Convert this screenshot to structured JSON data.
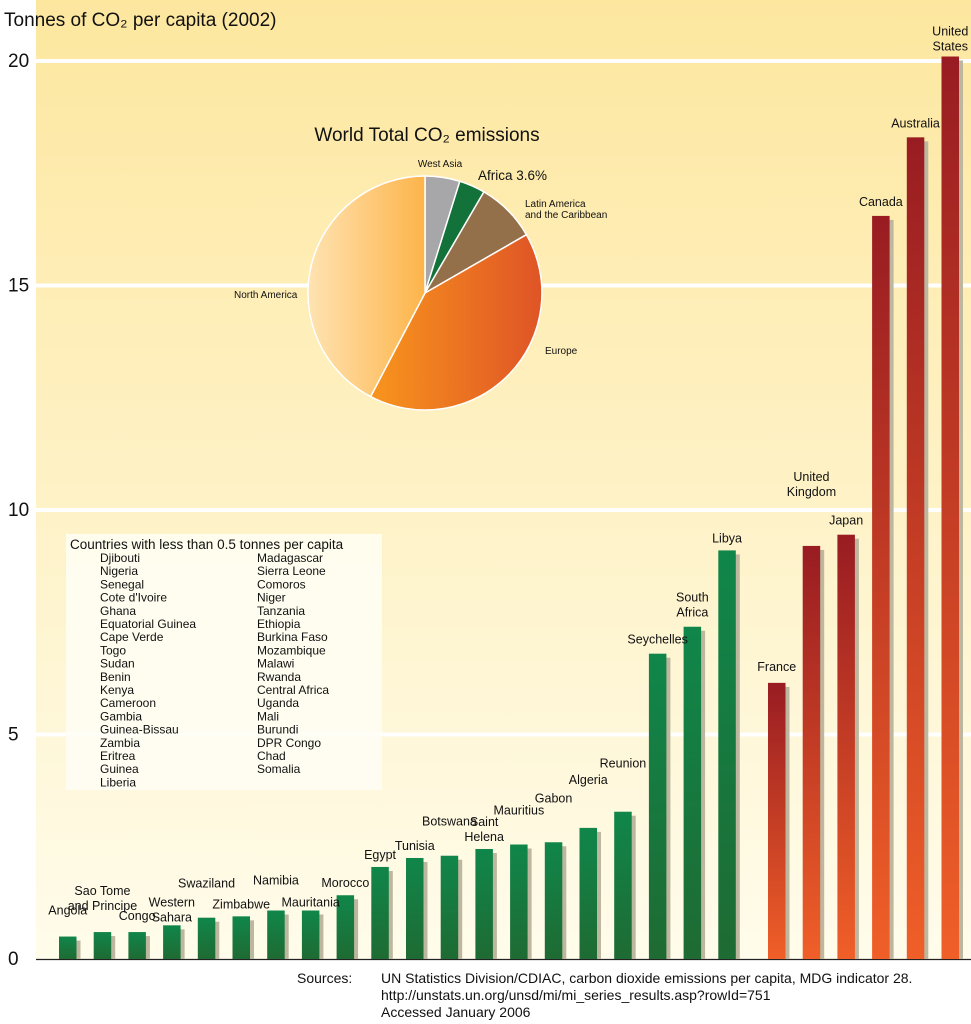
{
  "chart_data": [
    {
      "type": "bar",
      "title": "Tonnes of CO₂ per capita (2002)",
      "ylim": [
        0,
        21.3
      ],
      "yticks": [
        0,
        5,
        10,
        15,
        20
      ],
      "grid": true,
      "colors": {
        "africa_top": "#10864a",
        "africa_bottom": "#1e6b33",
        "other_top": "#981c22",
        "other_bottom": "#f05f28",
        "shadow": "#bdb79f",
        "bg_top": "#fde79f",
        "bg_bottom": "#fffceb"
      },
      "series": [
        {
          "name": "Africa",
          "categories": [
            "Angola",
            "Sao Tome and Principe",
            "Congo",
            "Western Sahara",
            "Swaziland",
            "Zimbabwe",
            "Namibia",
            "Mauritania",
            "Morocco",
            "Egypt",
            "Tunisia",
            "Botswana",
            "Saint Helena",
            "Mauritius",
            "Gabon",
            "Algeria",
            "Reunion",
            "Seychelles",
            "South Africa",
            "Libya"
          ],
          "values": [
            0.5,
            0.6,
            0.6,
            0.75,
            0.92,
            0.95,
            1.08,
            1.08,
            1.42,
            2.05,
            2.25,
            2.3,
            2.45,
            2.55,
            2.6,
            2.92,
            3.28,
            6.8,
            7.4,
            9.1
          ]
        },
        {
          "name": "Other",
          "categories": [
            "France",
            "United Kingdom",
            "Japan",
            "Canada",
            "Australia",
            "United States"
          ],
          "values": [
            6.15,
            9.2,
            9.45,
            16.55,
            18.3,
            20.1
          ]
        }
      ]
    },
    {
      "type": "pie",
      "title": "World Total CO₂ emissions",
      "slices": [
        {
          "label": "West Asia",
          "value": 4.8,
          "color": "#a7a7a9"
        },
        {
          "label": "Africa 3.6%",
          "value": 3.6,
          "color": "#13713a"
        },
        {
          "label": "Latin America and the Caribbean",
          "value": 8.3,
          "color": "#93704a"
        },
        {
          "label": "Europe",
          "value": 41.0,
          "color": "#ef7d2a"
        },
        {
          "label": "North America",
          "value": 42.3,
          "color": "#fdbf62"
        }
      ]
    }
  ],
  "legend_box": {
    "title": "Countries with less than 0.5 tonnes per capita",
    "col1": [
      "Djibouti",
      "Nigeria",
      "Senegal",
      "Cote d'Ivoire",
      "Ghana",
      "Equatorial Guinea",
      "Cape Verde",
      "Togo",
      "Sudan",
      "Benin",
      "Kenya",
      "Cameroon",
      "Gambia",
      "Guinea-Bissau",
      "Zambia",
      "Eritrea",
      "Guinea",
      "Liberia"
    ],
    "col2": [
      "Madagascar",
      "Sierra Leone",
      "Comoros",
      "Niger",
      "Tanzania",
      "Ethiopia",
      "Burkina Faso",
      "Mozambique",
      "Malawi",
      "Rwanda",
      "Central Africa",
      "Uganda",
      "Mali",
      "Burundi",
      "DPR Congo",
      "Chad",
      "Somalia"
    ]
  },
  "sources": {
    "label": "Sources:",
    "lines": [
      "UN Statistics Division/CDIAC, carbon dioxide emissions per capita, MDG indicator 28.",
      "http://unstats.un.org/unsd/mi/mi_series_results.asp?rowId=751",
      "Accessed January 2006"
    ]
  }
}
